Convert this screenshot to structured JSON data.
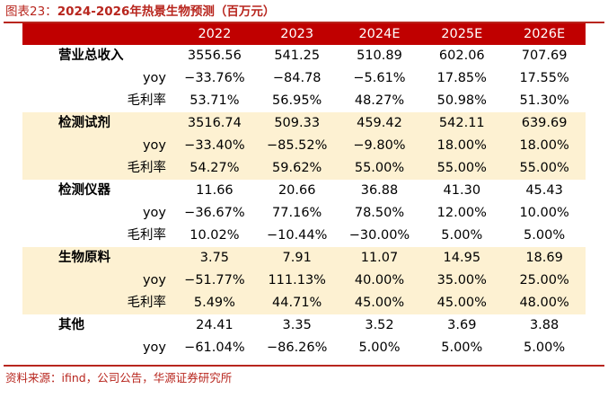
{
  "caption": {
    "label": "图表23：",
    "title": "2024-2026年热景生物预测（百万元）"
  },
  "table": {
    "columns": [
      "2022",
      "2023",
      "2024E",
      "2025E",
      "2026E"
    ],
    "groups": [
      {
        "name": "营业总收入",
        "highlight": false,
        "rows": [
          {
            "label": "",
            "values": [
              "3556.56",
              "541.25",
              "510.89",
              "602.06",
              "707.69"
            ]
          },
          {
            "label": "yoy",
            "values": [
              "−33.76%",
              "−84.78",
              "−5.61%",
              "17.85%",
              "17.55%"
            ]
          },
          {
            "label": "毛利率",
            "values": [
              "53.71%",
              "56.95%",
              "48.27%",
              "50.98%",
              "51.30%"
            ]
          }
        ]
      },
      {
        "name": "检测试剂",
        "highlight": true,
        "rows": [
          {
            "label": "",
            "values": [
              "3516.74",
              "509.33",
              "459.42",
              "542.11",
              "639.69"
            ]
          },
          {
            "label": "yoy",
            "values": [
              "−33.40%",
              "−85.52%",
              "−9.80%",
              "18.00%",
              "18.00%"
            ]
          },
          {
            "label": "毛利率",
            "values": [
              "54.27%",
              "59.62%",
              "55.00%",
              "55.00%",
              "55.00%"
            ]
          }
        ]
      },
      {
        "name": "检测仪器",
        "highlight": false,
        "rows": [
          {
            "label": "",
            "values": [
              "11.66",
              "20.66",
              "36.88",
              "41.30",
              "45.43"
            ]
          },
          {
            "label": "yoy",
            "values": [
              "−36.67%",
              "77.16%",
              "78.50%",
              "12.00%",
              "10.00%"
            ]
          },
          {
            "label": "毛利率",
            "values": [
              "10.02%",
              "−10.44%",
              "−30.00%",
              "5.00%",
              "5.00%"
            ]
          }
        ]
      },
      {
        "name": "生物原料",
        "highlight": true,
        "rows": [
          {
            "label": "",
            "values": [
              "3.75",
              "7.91",
              "11.07",
              "14.95",
              "18.69"
            ]
          },
          {
            "label": "yoy",
            "values": [
              "−51.77%",
              "111.13%",
              "40.00%",
              "35.00%",
              "25.00%"
            ]
          },
          {
            "label": "毛利率",
            "values": [
              "5.49%",
              "44.71%",
              "45.00%",
              "45.00%",
              "48.00%"
            ]
          }
        ]
      },
      {
        "name": "其他",
        "highlight": false,
        "rows": [
          {
            "label": "",
            "values": [
              "24.41",
              "3.35",
              "3.52",
              "3.69",
              "3.88"
            ]
          },
          {
            "label": "yoy",
            "values": [
              "−61.04%",
              "−86.26%",
              "5.00%",
              "5.00%",
              "5.00%"
            ]
          }
        ]
      }
    ]
  },
  "source": "资料来源：ifind，公司公告，华源证券研究所"
}
